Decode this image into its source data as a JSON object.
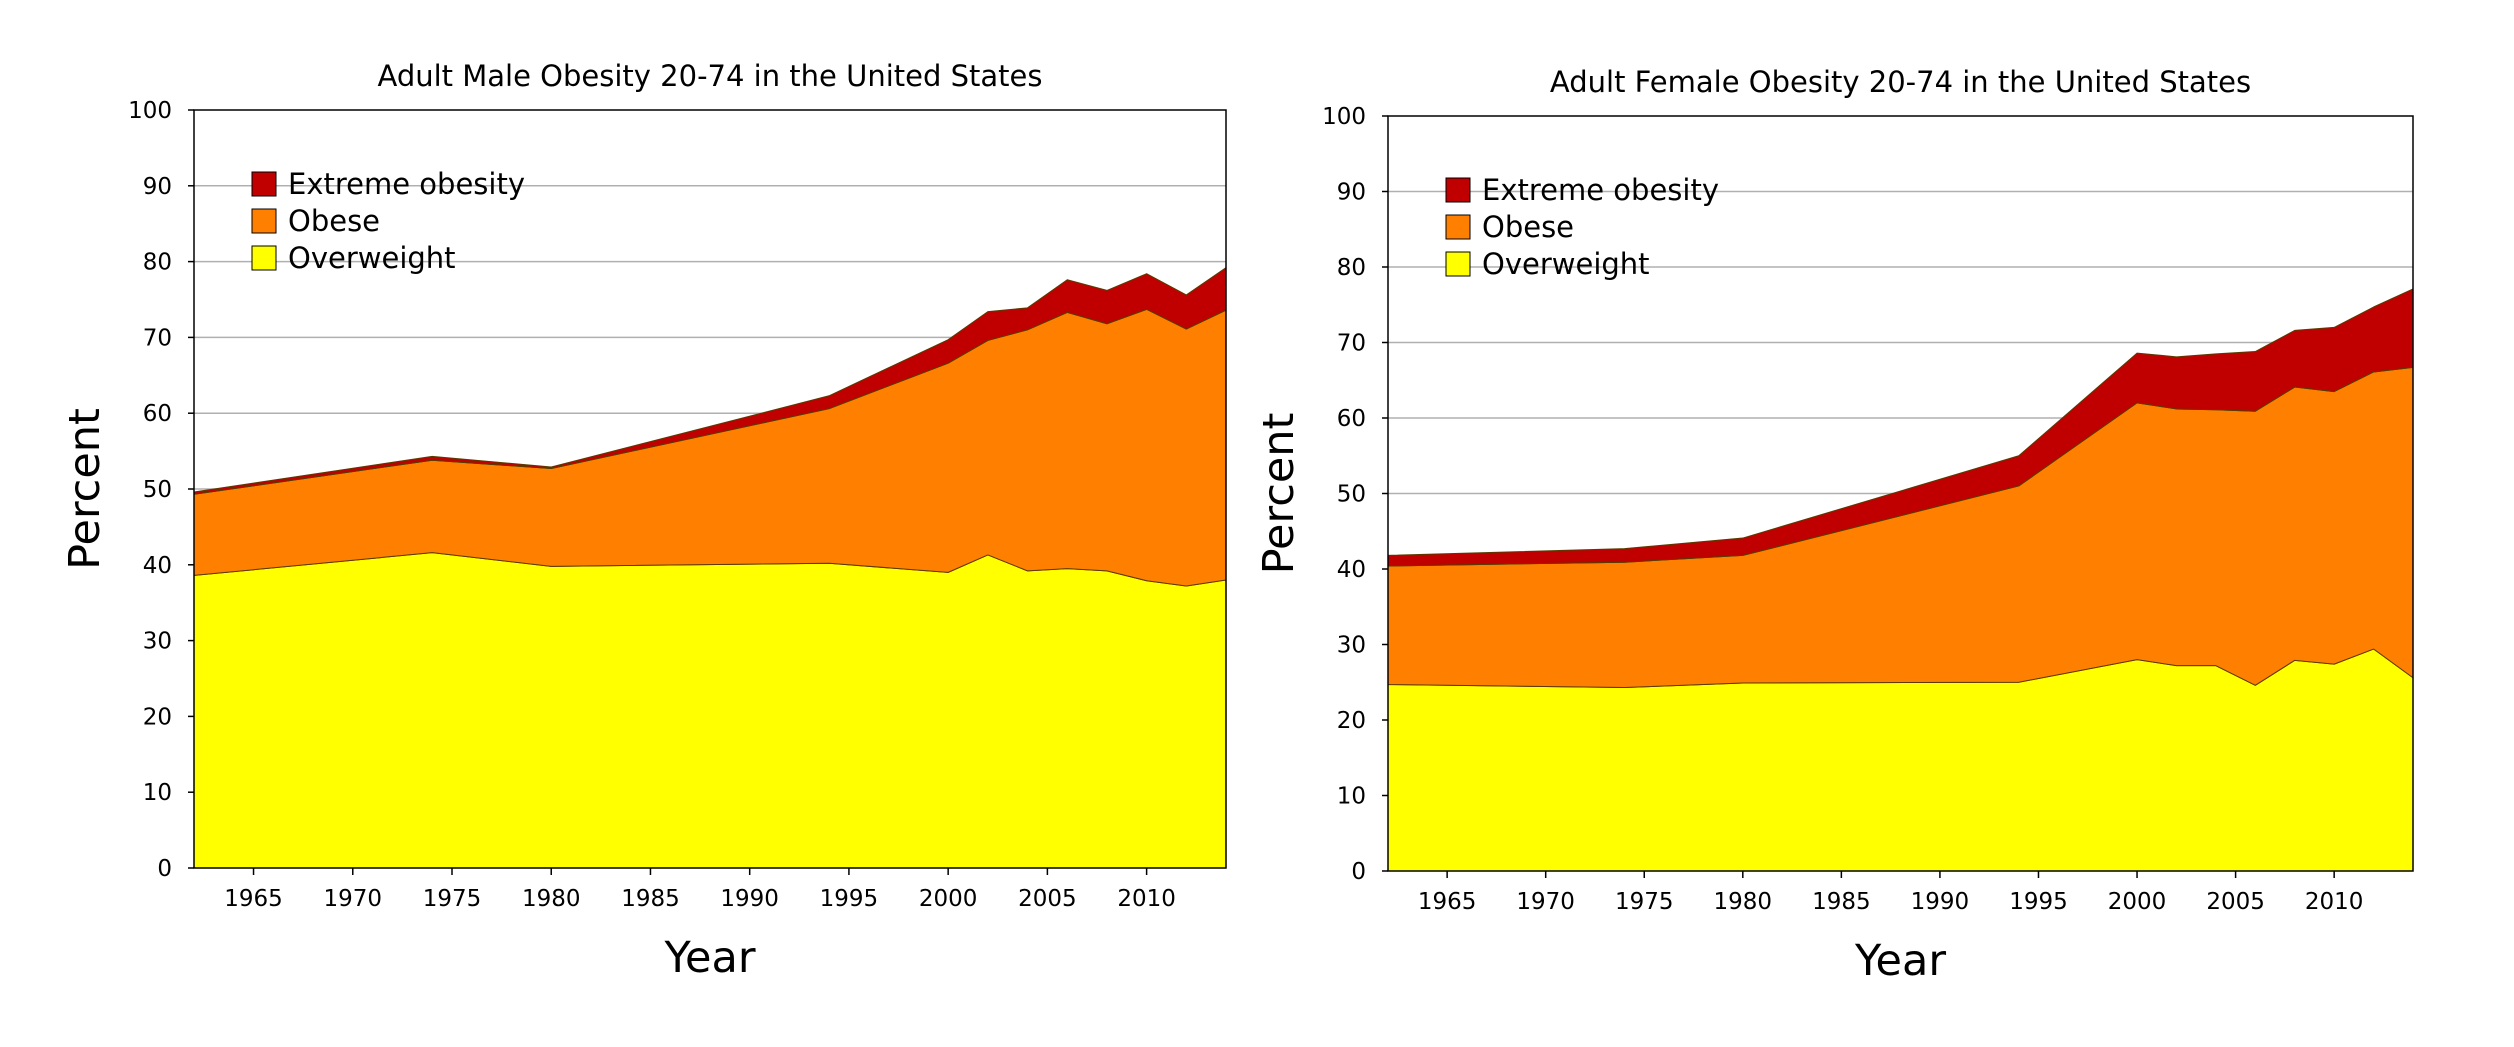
{
  "chart_data": [
    {
      "type": "area",
      "stacked": true,
      "title": "Adult Male Obesity 20-74 in the United States",
      "xlabel": "Year",
      "ylabel": "Percent",
      "xlim": [
        1962,
        2014
      ],
      "ylim": [
        0,
        100
      ],
      "xticks": [
        1965,
        1970,
        1975,
        1980,
        1985,
        1990,
        1995,
        2000,
        2005,
        2010
      ],
      "yticks": [
        0,
        10,
        20,
        30,
        40,
        50,
        60,
        70,
        80,
        90,
        100
      ],
      "grid": "horizontal",
      "legend_position": "top-left",
      "x": [
        1962,
        1974,
        1980,
        1994,
        2000,
        2002,
        2004,
        2006,
        2008,
        2010,
        2012,
        2014
      ],
      "series": [
        {
          "name": "Overweight",
          "color": "#ffff00",
          "values": [
            38.6,
            41.6,
            39.8,
            40.2,
            39.0,
            41.3,
            39.2,
            39.5,
            39.2,
            37.9,
            37.2,
            38.0
          ]
        },
        {
          "name": "Obese",
          "color": "#ff8000",
          "values": [
            10.7,
            12.2,
            12.9,
            20.4,
            27.6,
            28.3,
            31.8,
            33.8,
            32.6,
            35.8,
            33.9,
            35.6
          ]
        },
        {
          "name": "Extreme obesity",
          "color": "#c00000",
          "values": [
            0.3,
            0.5,
            0.2,
            1.7,
            3.1,
            3.8,
            2.9,
            4.3,
            4.4,
            4.7,
            4.5,
            5.6
          ]
        }
      ],
      "legend_order": [
        "Extreme obesity",
        "Obese",
        "Overweight"
      ]
    },
    {
      "type": "area",
      "stacked": true,
      "title": "Adult Female Obesity 20-74 in the United States",
      "xlabel": "Year",
      "ylabel": "Percent",
      "xlim": [
        1962,
        2014
      ],
      "ylim": [
        0,
        100
      ],
      "xticks": [
        1965,
        1970,
        1975,
        1980,
        1985,
        1990,
        1995,
        2000,
        2005,
        2010
      ],
      "yticks": [
        0,
        10,
        20,
        30,
        40,
        50,
        60,
        70,
        80,
        90,
        100
      ],
      "grid": "horizontal",
      "legend_position": "top-left",
      "x": [
        1962,
        1974,
        1980,
        1994,
        2000,
        2002,
        2004,
        2006,
        2008,
        2010,
        2012,
        2014
      ],
      "series": [
        {
          "name": "Overweight",
          "color": "#ffff00",
          "values": [
            24.7,
            24.3,
            24.9,
            25.0,
            28.0,
            27.2,
            27.2,
            24.6,
            27.9,
            27.4,
            29.4,
            25.6
          ]
        },
        {
          "name": "Obese",
          "color": "#ff8000",
          "values": [
            15.7,
            16.6,
            16.9,
            26.0,
            34.0,
            34.0,
            33.9,
            36.3,
            36.2,
            36.1,
            36.7,
            41.1
          ]
        },
        {
          "name": "Extreme obesity",
          "color": "#c00000",
          "values": [
            1.4,
            1.8,
            2.3,
            4.0,
            6.6,
            6.9,
            7.4,
            7.9,
            7.5,
            8.5,
            8.6,
            10.4
          ]
        }
      ],
      "legend_order": [
        "Extreme obesity",
        "Obese",
        "Overweight"
      ]
    }
  ]
}
